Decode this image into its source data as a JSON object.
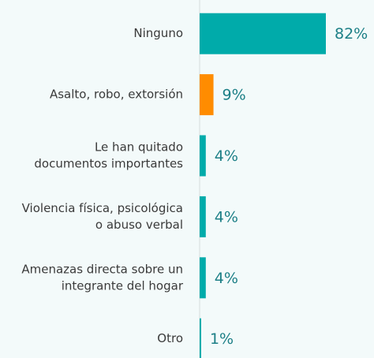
{
  "chart_data": {
    "type": "hbar",
    "categories": [
      [
        "Ninguno"
      ],
      [
        "Asalto, robo, extorsión"
      ],
      [
        "Le han quitado",
        "documentos importantes"
      ],
      [
        "Violencia física, psicológica",
        "o abuso verbal"
      ],
      [
        "Amenazas directa sobre un",
        "integrante del hogar"
      ],
      [
        "Otro"
      ]
    ],
    "values": [
      82,
      9,
      4,
      4,
      4,
      1
    ],
    "value_labels": [
      "82%",
      "9%",
      "4%",
      "4%",
      "4%",
      "1%"
    ],
    "colors": [
      "#00abaa",
      "#ff8c00",
      "#00abaa",
      "#00abaa",
      "#00abaa",
      "#00abaa"
    ]
  }
}
